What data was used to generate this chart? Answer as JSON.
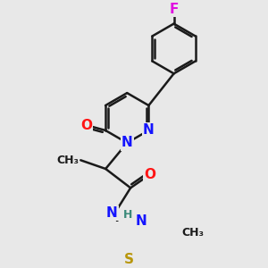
{
  "bg_color": "#e8e8e8",
  "bond_color": "#1a1a1a",
  "bond_width": 1.8,
  "atom_colors": {
    "N": "#1414ff",
    "O": "#ff1414",
    "F": "#e010e0",
    "S": "#b8960a",
    "H": "#3a8a7a",
    "C": "#1a1a1a"
  },
  "font_size": 11
}
